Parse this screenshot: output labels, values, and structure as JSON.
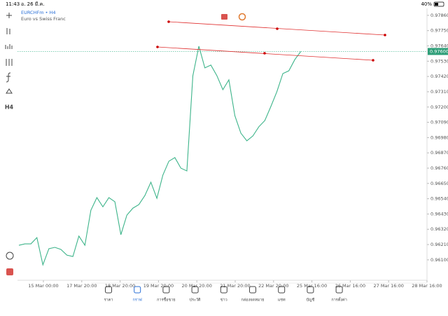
{
  "status_bar": {
    "time": "11:43",
    "date": "อ. 26 มี.ค.",
    "battery": "40%"
  },
  "chart": {
    "type": "line",
    "symbol": "EURCHFm • H4",
    "description": "Euro vs Swiss Franc",
    "color": "#3db48a",
    "ylim": [
      0.95953,
      0.9791
    ],
    "yticks": [
      {
        "value": 0.9786,
        "label": "0.97860"
      },
      {
        "value": 0.9775,
        "label": "0.97750"
      },
      {
        "value": 0.9764,
        "label": "0.97640"
      },
      {
        "value": 0.9753,
        "label": "0.97530"
      },
      {
        "value": 0.9742,
        "label": "0.97420"
      },
      {
        "value": 0.9731,
        "label": "0.97310"
      },
      {
        "value": 0.972,
        "label": "0.97200"
      },
      {
        "value": 0.9709,
        "label": "0.97090"
      },
      {
        "value": 0.9698,
        "label": "0.96980"
      },
      {
        "value": 0.9687,
        "label": "0.96870"
      },
      {
        "value": 0.9676,
        "label": "0.96760"
      },
      {
        "value": 0.9665,
        "label": "0.96650"
      },
      {
        "value": 0.9654,
        "label": "0.96540"
      },
      {
        "value": 0.9643,
        "label": "0.96430"
      },
      {
        "value": 0.9632,
        "label": "0.96320"
      },
      {
        "value": 0.9621,
        "label": "0.96210"
      },
      {
        "value": 0.961,
        "label": "0.96100"
      }
    ],
    "current_price": {
      "value": 0.976,
      "label": "0.97600"
    },
    "x_labels": [
      "15 Mar 00:00",
      "17 Mar 20:00",
      "18 Mar 20:00",
      "19 Mar 20:00",
      "20 Mar 20:00",
      "21 Mar 20:00",
      "22 Mar 20:00",
      "25 Mar 16:00",
      "26 Mar 16:00",
      "27 Mar 16:00",
      "28 Mar 16:00"
    ],
    "values": [
      0.96205,
      0.96215,
      0.96215,
      0.9626,
      0.96064,
      0.9618,
      0.9619,
      0.96175,
      0.96134,
      0.96124,
      0.96271,
      0.96205,
      0.96457,
      0.96548,
      0.96482,
      0.96548,
      0.96518,
      0.96281,
      0.96422,
      0.96472,
      0.96498,
      0.96563,
      0.96659,
      0.96543,
      0.9671,
      0.9681,
      0.96836,
      0.9676,
      0.9674,
      0.97426,
      0.97638,
      0.97482,
      0.97502,
      0.97426,
      0.97325,
      0.97396,
      0.97138,
      0.97012,
      0.96957,
      0.96992,
      0.97058,
      0.97103,
      0.97204,
      0.9731,
      0.97441,
      0.97461,
      0.97542,
      0.976
    ]
  },
  "toolbar": {
    "timeframe": "H4"
  },
  "nav": [
    "ราคา",
    "กราฟ",
    "การซื้อขาย",
    "ประวัติ",
    "ข่าว",
    "กล่องจดหมาย",
    "แชท",
    "บัญชี",
    "การตั้งค่า"
  ]
}
